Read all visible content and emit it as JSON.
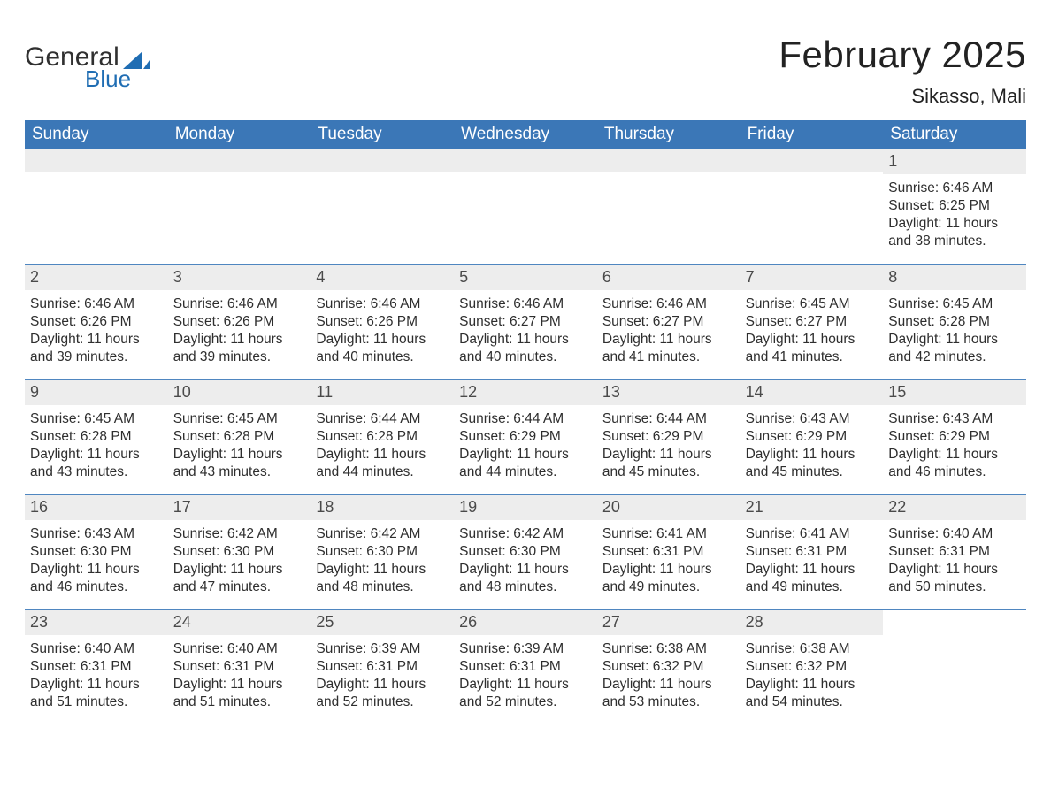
{
  "logo": {
    "word1": "General",
    "word2": "Blue"
  },
  "title": "February 2025",
  "location": "Sikasso, Mali",
  "colors": {
    "header_bg": "#3b77b7",
    "header_text": "#ffffff",
    "week_divider": "#4f86c0",
    "daynum_bg": "#ededed",
    "text": "#2e2e2e",
    "logo_blue": "#1f6db3"
  },
  "fonts": {
    "title_size": 42,
    "header_size": 19,
    "body_size": 15.5,
    "location_size": 22
  },
  "day_headers": [
    "Sunday",
    "Monday",
    "Tuesday",
    "Wednesday",
    "Thursday",
    "Friday",
    "Saturday"
  ],
  "weeks": [
    [
      {
        "empty": true
      },
      {
        "empty": true
      },
      {
        "empty": true
      },
      {
        "empty": true
      },
      {
        "empty": true
      },
      {
        "empty": true
      },
      {
        "num": "1",
        "sunrise": "Sunrise: 6:46 AM",
        "sunset": "Sunset: 6:25 PM",
        "daylight": "Daylight: 11 hours and 38 minutes."
      }
    ],
    [
      {
        "num": "2",
        "sunrise": "Sunrise: 6:46 AM",
        "sunset": "Sunset: 6:26 PM",
        "daylight": "Daylight: 11 hours and 39 minutes."
      },
      {
        "num": "3",
        "sunrise": "Sunrise: 6:46 AM",
        "sunset": "Sunset: 6:26 PM",
        "daylight": "Daylight: 11 hours and 39 minutes."
      },
      {
        "num": "4",
        "sunrise": "Sunrise: 6:46 AM",
        "sunset": "Sunset: 6:26 PM",
        "daylight": "Daylight: 11 hours and 40 minutes."
      },
      {
        "num": "5",
        "sunrise": "Sunrise: 6:46 AM",
        "sunset": "Sunset: 6:27 PM",
        "daylight": "Daylight: 11 hours and 40 minutes."
      },
      {
        "num": "6",
        "sunrise": "Sunrise: 6:46 AM",
        "sunset": "Sunset: 6:27 PM",
        "daylight": "Daylight: 11 hours and 41 minutes."
      },
      {
        "num": "7",
        "sunrise": "Sunrise: 6:45 AM",
        "sunset": "Sunset: 6:27 PM",
        "daylight": "Daylight: 11 hours and 41 minutes."
      },
      {
        "num": "8",
        "sunrise": "Sunrise: 6:45 AM",
        "sunset": "Sunset: 6:28 PM",
        "daylight": "Daylight: 11 hours and 42 minutes."
      }
    ],
    [
      {
        "num": "9",
        "sunrise": "Sunrise: 6:45 AM",
        "sunset": "Sunset: 6:28 PM",
        "daylight": "Daylight: 11 hours and 43 minutes."
      },
      {
        "num": "10",
        "sunrise": "Sunrise: 6:45 AM",
        "sunset": "Sunset: 6:28 PM",
        "daylight": "Daylight: 11 hours and 43 minutes."
      },
      {
        "num": "11",
        "sunrise": "Sunrise: 6:44 AM",
        "sunset": "Sunset: 6:28 PM",
        "daylight": "Daylight: 11 hours and 44 minutes."
      },
      {
        "num": "12",
        "sunrise": "Sunrise: 6:44 AM",
        "sunset": "Sunset: 6:29 PM",
        "daylight": "Daylight: 11 hours and 44 minutes."
      },
      {
        "num": "13",
        "sunrise": "Sunrise: 6:44 AM",
        "sunset": "Sunset: 6:29 PM",
        "daylight": "Daylight: 11 hours and 45 minutes."
      },
      {
        "num": "14",
        "sunrise": "Sunrise: 6:43 AM",
        "sunset": "Sunset: 6:29 PM",
        "daylight": "Daylight: 11 hours and 45 minutes."
      },
      {
        "num": "15",
        "sunrise": "Sunrise: 6:43 AM",
        "sunset": "Sunset: 6:29 PM",
        "daylight": "Daylight: 11 hours and 46 minutes."
      }
    ],
    [
      {
        "num": "16",
        "sunrise": "Sunrise: 6:43 AM",
        "sunset": "Sunset: 6:30 PM",
        "daylight": "Daylight: 11 hours and 46 minutes."
      },
      {
        "num": "17",
        "sunrise": "Sunrise: 6:42 AM",
        "sunset": "Sunset: 6:30 PM",
        "daylight": "Daylight: 11 hours and 47 minutes."
      },
      {
        "num": "18",
        "sunrise": "Sunrise: 6:42 AM",
        "sunset": "Sunset: 6:30 PM",
        "daylight": "Daylight: 11 hours and 48 minutes."
      },
      {
        "num": "19",
        "sunrise": "Sunrise: 6:42 AM",
        "sunset": "Sunset: 6:30 PM",
        "daylight": "Daylight: 11 hours and 48 minutes."
      },
      {
        "num": "20",
        "sunrise": "Sunrise: 6:41 AM",
        "sunset": "Sunset: 6:31 PM",
        "daylight": "Daylight: 11 hours and 49 minutes."
      },
      {
        "num": "21",
        "sunrise": "Sunrise: 6:41 AM",
        "sunset": "Sunset: 6:31 PM",
        "daylight": "Daylight: 11 hours and 49 minutes."
      },
      {
        "num": "22",
        "sunrise": "Sunrise: 6:40 AM",
        "sunset": "Sunset: 6:31 PM",
        "daylight": "Daylight: 11 hours and 50 minutes."
      }
    ],
    [
      {
        "num": "23",
        "sunrise": "Sunrise: 6:40 AM",
        "sunset": "Sunset: 6:31 PM",
        "daylight": "Daylight: 11 hours and 51 minutes."
      },
      {
        "num": "24",
        "sunrise": "Sunrise: 6:40 AM",
        "sunset": "Sunset: 6:31 PM",
        "daylight": "Daylight: 11 hours and 51 minutes."
      },
      {
        "num": "25",
        "sunrise": "Sunrise: 6:39 AM",
        "sunset": "Sunset: 6:31 PM",
        "daylight": "Daylight: 11 hours and 52 minutes."
      },
      {
        "num": "26",
        "sunrise": "Sunrise: 6:39 AM",
        "sunset": "Sunset: 6:31 PM",
        "daylight": "Daylight: 11 hours and 52 minutes."
      },
      {
        "num": "27",
        "sunrise": "Sunrise: 6:38 AM",
        "sunset": "Sunset: 6:32 PM",
        "daylight": "Daylight: 11 hours and 53 minutes."
      },
      {
        "num": "28",
        "sunrise": "Sunrise: 6:38 AM",
        "sunset": "Sunset: 6:32 PM",
        "daylight": "Daylight: 11 hours and 54 minutes."
      },
      {
        "empty": true,
        "noBg": true
      }
    ]
  ]
}
